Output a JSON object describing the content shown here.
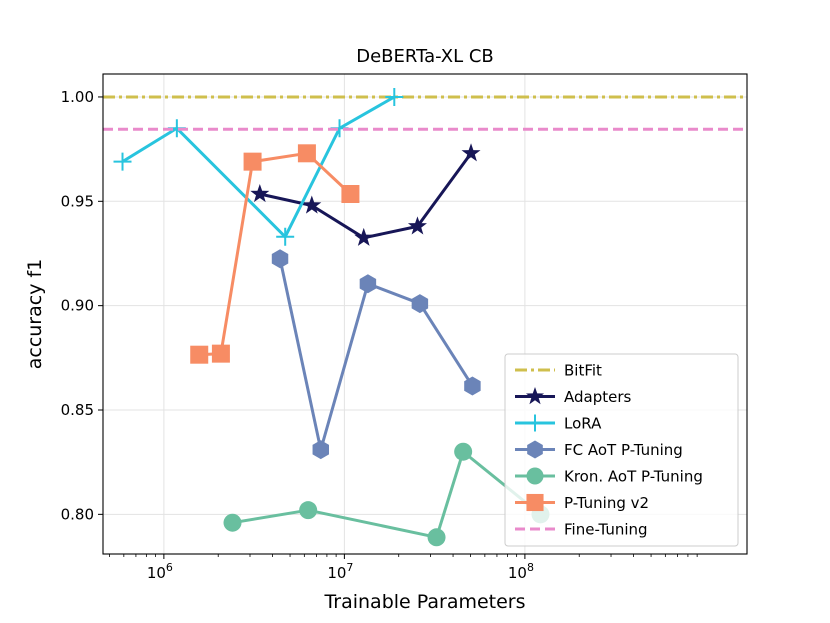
{
  "chart_data": {
    "type": "line",
    "title": "DeBERTa-XL CB",
    "xlabel": "Trainable Parameters",
    "ylabel": "accuracy f1",
    "xscale": "log",
    "xlim": [
      460000,
      1700000000
    ],
    "ylim": [
      0.781,
      1.011
    ],
    "xticks": [
      {
        "value": 1000000,
        "base": "10",
        "exp": "6"
      },
      {
        "value": 10000000,
        "base": "10",
        "exp": "7"
      },
      {
        "value": 100000000,
        "base": "10",
        "exp": "8"
      }
    ],
    "yticks": [
      {
        "value": 0.8,
        "label": "0.80"
      },
      {
        "value": 0.85,
        "label": "0.85"
      },
      {
        "value": 0.9,
        "label": "0.90"
      },
      {
        "value": 0.95,
        "label": "0.95"
      },
      {
        "value": 1.0,
        "label": "1.00"
      }
    ],
    "grid": true,
    "legend_position": "lower-right",
    "series": [
      {
        "name": "BitFit",
        "kind": "hline",
        "y": 1.0,
        "color": "#cfbf4d",
        "dash": "dashdot",
        "marker": "none"
      },
      {
        "name": "Adapters",
        "color": "#171657",
        "marker": "star",
        "x": [
          3400000,
          6600000,
          12800000,
          25400000,
          50300000
        ],
        "y": [
          0.9535,
          0.948,
          0.9325,
          0.938,
          0.973
        ]
      },
      {
        "name": "LoRA",
        "color": "#28c4de",
        "marker": "plus",
        "x": [
          590000,
          1180000,
          4700000,
          9400000,
          18900000
        ],
        "y": [
          0.969,
          0.985,
          0.933,
          0.985,
          1.0
        ]
      },
      {
        "name": "FC AoT P-Tuning",
        "color": "#6b84b8",
        "marker": "hexagon",
        "x": [
          4400000,
          7400000,
          13500000,
          26200000,
          51200000
        ],
        "y": [
          0.9225,
          0.831,
          0.9105,
          0.901,
          0.8615
        ]
      },
      {
        "name": "Kron. AoT P-Tuning",
        "color": "#69bf9f",
        "marker": "circle",
        "x": [
          2400000,
          6300000,
          32400000,
          45500000,
          122000000
        ],
        "y": [
          0.796,
          0.802,
          0.789,
          0.83,
          0.8
        ]
      },
      {
        "name": "P-Tuning v2",
        "color": "#f78c64",
        "marker": "square",
        "x": [
          1570000,
          2070000,
          3100000,
          6200000,
          10800000
        ],
        "y": [
          0.8765,
          0.877,
          0.969,
          0.973,
          0.9535
        ]
      },
      {
        "name": "Fine-Tuning",
        "kind": "hline",
        "y": 0.9845,
        "color": "#e98acb",
        "dash": "dashed",
        "marker": "none"
      }
    ]
  }
}
